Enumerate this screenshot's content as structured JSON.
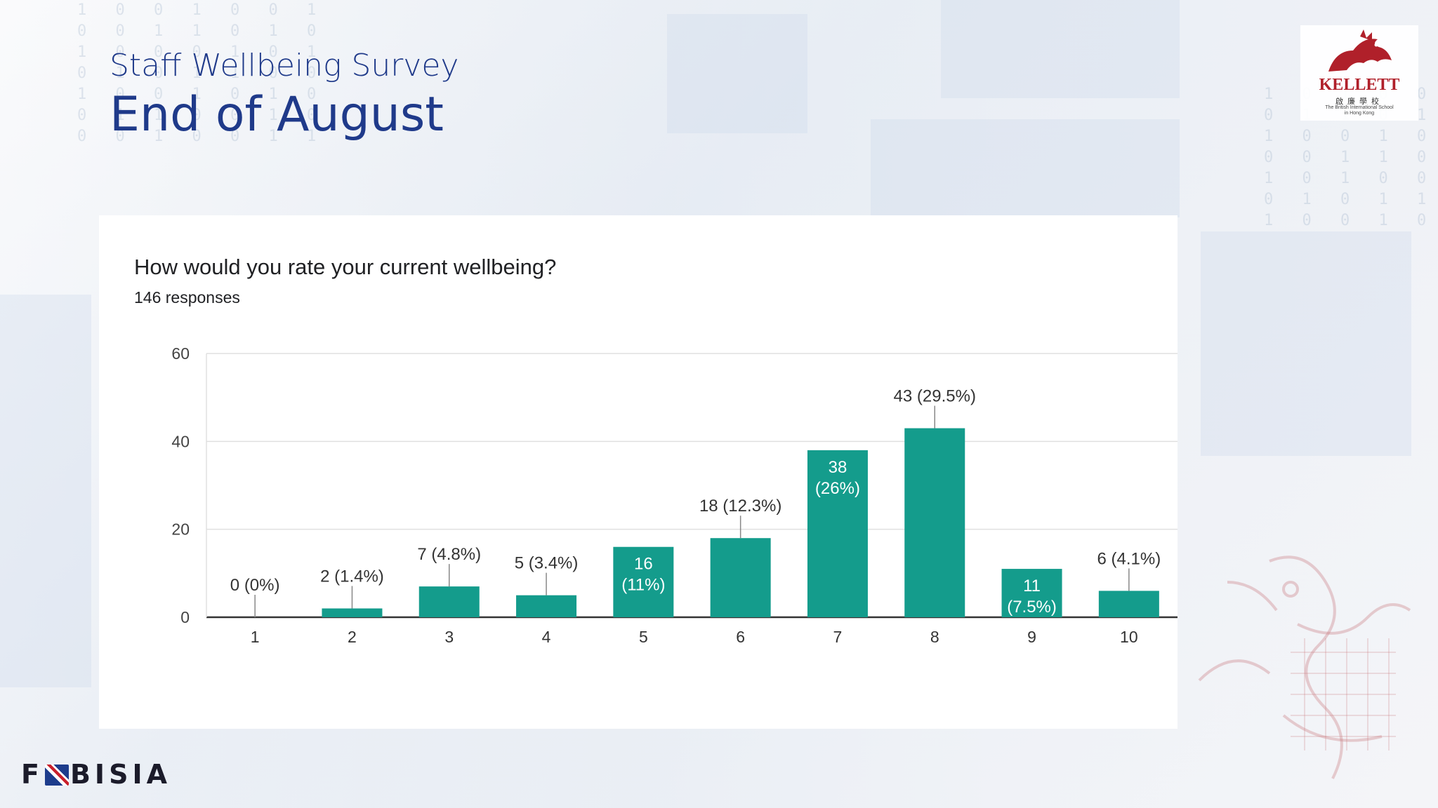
{
  "slide": {
    "title_line1": "Staff Wellbeing Survey",
    "title_line2": "End of August"
  },
  "logo": {
    "name": "KELLETT",
    "chinese": "啟廉學校",
    "english_line1": "The British International School",
    "english_line2": "in Hong Kong"
  },
  "footer": {
    "brand_left": "F",
    "brand_right": "BISIA"
  },
  "colors": {
    "bar": "#149c8c",
    "title": "#1f3a8a"
  },
  "chart_data": {
    "type": "bar",
    "title": "How would you rate your current wellbeing?",
    "subtitle": "146 responses",
    "categories": [
      "1",
      "2",
      "3",
      "4",
      "5",
      "6",
      "7",
      "8",
      "9",
      "10"
    ],
    "values": [
      0,
      2,
      7,
      5,
      16,
      18,
      38,
      43,
      11,
      6
    ],
    "labels": [
      "0 (0%)",
      "2 (1.4%)",
      "7 (4.8%)",
      "5 (3.4%)",
      "16 (11%)",
      "18 (12.3%)",
      "38 (26%)",
      "43 (29.5%)",
      "11 (7.5%)",
      "6 (4.1%)"
    ],
    "label_inside": [
      false,
      false,
      false,
      false,
      true,
      false,
      true,
      false,
      true,
      false
    ],
    "ylim": [
      0,
      60
    ],
    "yticks": [
      0,
      20,
      40,
      60
    ],
    "grid": true,
    "legend": "none"
  }
}
